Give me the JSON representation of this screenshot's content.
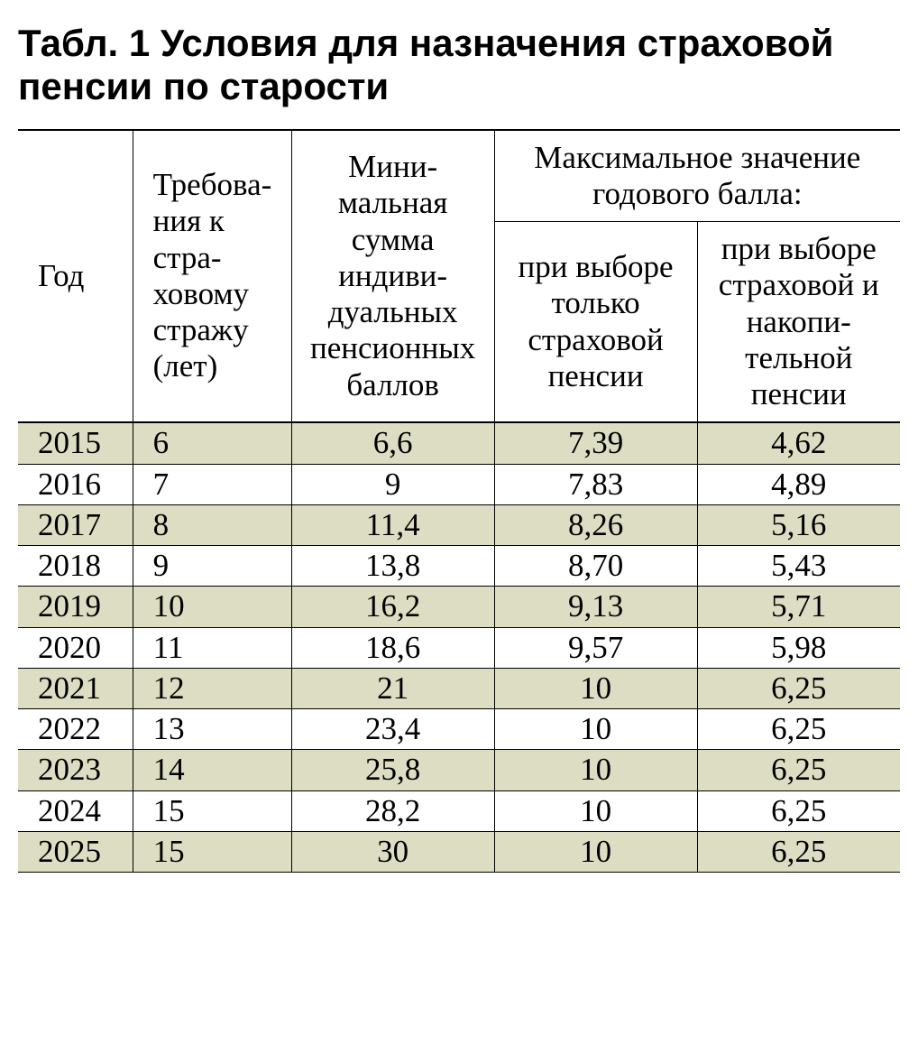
{
  "title": "Табл. 1 Условия для назначения страховой пенсии по старости",
  "table": {
    "type": "table",
    "columns": {
      "year": "Год",
      "req_years": "Требова­ния к стра­ховому стражу (лет)",
      "min_points": "Мини­мальная сумма индиви­дуальных пенсион­ных баллов",
      "max_group": "Максимальное значение годового балла:",
      "max_only_insurance": "при вы­боре только страхо­вой пенсии",
      "max_ins_and_funded": "при вы­боре страхо­вой и накопи­тельной пенсии"
    },
    "column_widths_pct": [
      13,
      18,
      23,
      23,
      23
    ],
    "column_align": [
      "left",
      "left",
      "center",
      "center",
      "center"
    ],
    "header_font_size": 35,
    "body_font_size": 35,
    "stripe_color": "#dcddc2",
    "background_color": "#ffffff",
    "border_color": "#000000",
    "rows": [
      [
        "2015",
        "6",
        "6,6",
        "7,39",
        "4,62"
      ],
      [
        "2016",
        "7",
        "9",
        "7,83",
        "4,89"
      ],
      [
        "2017",
        "8",
        "11,4",
        "8,26",
        "5,16"
      ],
      [
        "2018",
        "9",
        "13,8",
        "8,70",
        "5,43"
      ],
      [
        "2019",
        "10",
        "16,2",
        "9,13",
        "5,71"
      ],
      [
        "2020",
        "11",
        "18,6",
        "9,57",
        "5,98"
      ],
      [
        "2021",
        "12",
        "21",
        "10",
        "6,25"
      ],
      [
        "2022",
        "13",
        "23,4",
        "10",
        "6,25"
      ],
      [
        "2023",
        "14",
        "25,8",
        "10",
        "6,25"
      ],
      [
        "2024",
        "15",
        "28,2",
        "10",
        "6,25"
      ],
      [
        "2025",
        "15",
        "30",
        "10",
        "6,25"
      ]
    ]
  },
  "title_style": {
    "font_family": "Arial, Helvetica, sans-serif",
    "font_weight": 700,
    "font_size": 42,
    "color": "#000000"
  }
}
